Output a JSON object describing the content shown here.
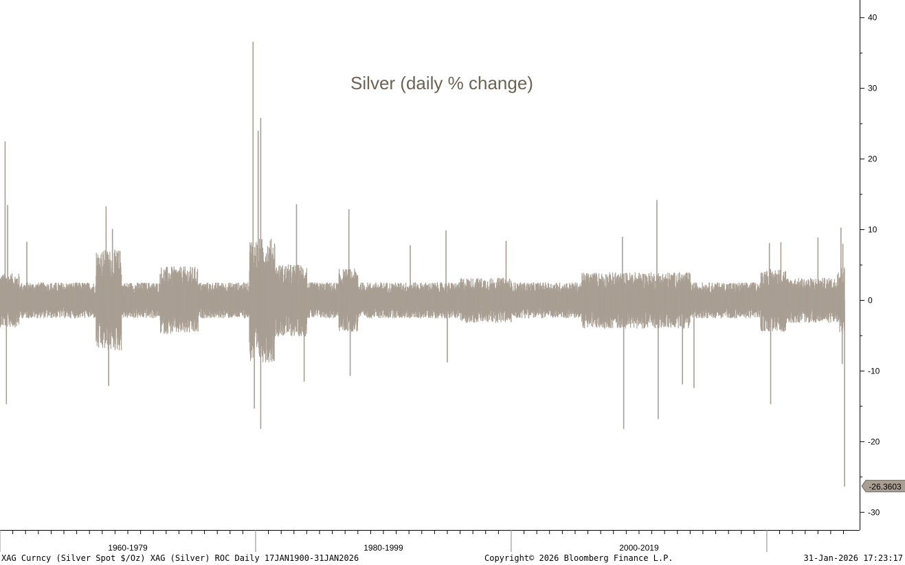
{
  "chart_data": {
    "type": "bar",
    "title": "Silver (daily % change)",
    "xlabel": "",
    "ylabel": "",
    "y_axis_position": "right",
    "ylim": [
      -32.5,
      42.5
    ],
    "y_ticks": [
      -30,
      -20,
      -10,
      0,
      10,
      20,
      30,
      40
    ],
    "y_tick_labels": [
      "-30",
      "-20",
      "-10",
      "0",
      "10",
      "20",
      "30",
      "40"
    ],
    "x_range": [
      1960,
      2026.08
    ],
    "x_period_labels": [
      {
        "label": "1960-1979",
        "start": 1960,
        "end": 1980
      },
      {
        "label": "1980-1999",
        "start": 1980,
        "end": 2000
      },
      {
        "label": "2000-2019",
        "start": 2000,
        "end": 2020
      }
    ],
    "series": [
      {
        "color": "#a89e92",
        "last_value": -26.3603,
        "last_value_label": "-26.3603",
        "notable_values": [
          {
            "x": 1960.4,
            "value": 22.5
          },
          {
            "x": 1960.5,
            "value": -14.7
          },
          {
            "x": 1960.6,
            "value": 13.5
          },
          {
            "x": 1962.1,
            "value": 8.3
          },
          {
            "x": 1968.3,
            "value": 13.3
          },
          {
            "x": 1968.5,
            "value": -12.1
          },
          {
            "x": 1968.8,
            "value": 10.1
          },
          {
            "x": 1979.8,
            "value": 36.6
          },
          {
            "x": 1979.9,
            "value": -15.3
          },
          {
            "x": 1980.2,
            "value": 24.0
          },
          {
            "x": 1980.4,
            "value": 25.8
          },
          {
            "x": 1980.4,
            "value": -18.2
          },
          {
            "x": 1983.2,
            "value": 13.6
          },
          {
            "x": 1983.8,
            "value": -11.5
          },
          {
            "x": 1987.3,
            "value": 12.9
          },
          {
            "x": 1987.4,
            "value": -10.7
          },
          {
            "x": 1992.1,
            "value": 7.8
          },
          {
            "x": 1994.9,
            "value": 9.9
          },
          {
            "x": 1995.0,
            "value": -8.8
          },
          {
            "x": 1999.6,
            "value": 8.4
          },
          {
            "x": 2008.7,
            "value": 9.0
          },
          {
            "x": 2008.8,
            "value": -18.2
          },
          {
            "x": 2011.4,
            "value": 14.2
          },
          {
            "x": 2011.5,
            "value": -16.8
          },
          {
            "x": 2013.4,
            "value": -11.9
          },
          {
            "x": 2014.3,
            "value": -12.4
          },
          {
            "x": 2020.2,
            "value": 8.1
          },
          {
            "x": 2020.3,
            "value": -14.7
          },
          {
            "x": 2021.1,
            "value": 8.2
          },
          {
            "x": 2024.0,
            "value": 8.9
          },
          {
            "x": 2025.8,
            "value": 10.3
          },
          {
            "x": 2025.9,
            "value": -9.0
          },
          {
            "x": 2025.95,
            "value": 8.0
          },
          {
            "x": 2026.08,
            "value": -26.3603
          }
        ]
      }
    ],
    "grid": false,
    "legend": "none"
  },
  "footer": {
    "left": "XAG Curncy (Silver Spot  $/Oz) XAG (Silver) ROC Daily 17JAN1900-31JAN2026",
    "center": "Copyright© 2026 Bloomberg Finance L.P.",
    "right": "31-Jan-2026 17:23:17"
  }
}
